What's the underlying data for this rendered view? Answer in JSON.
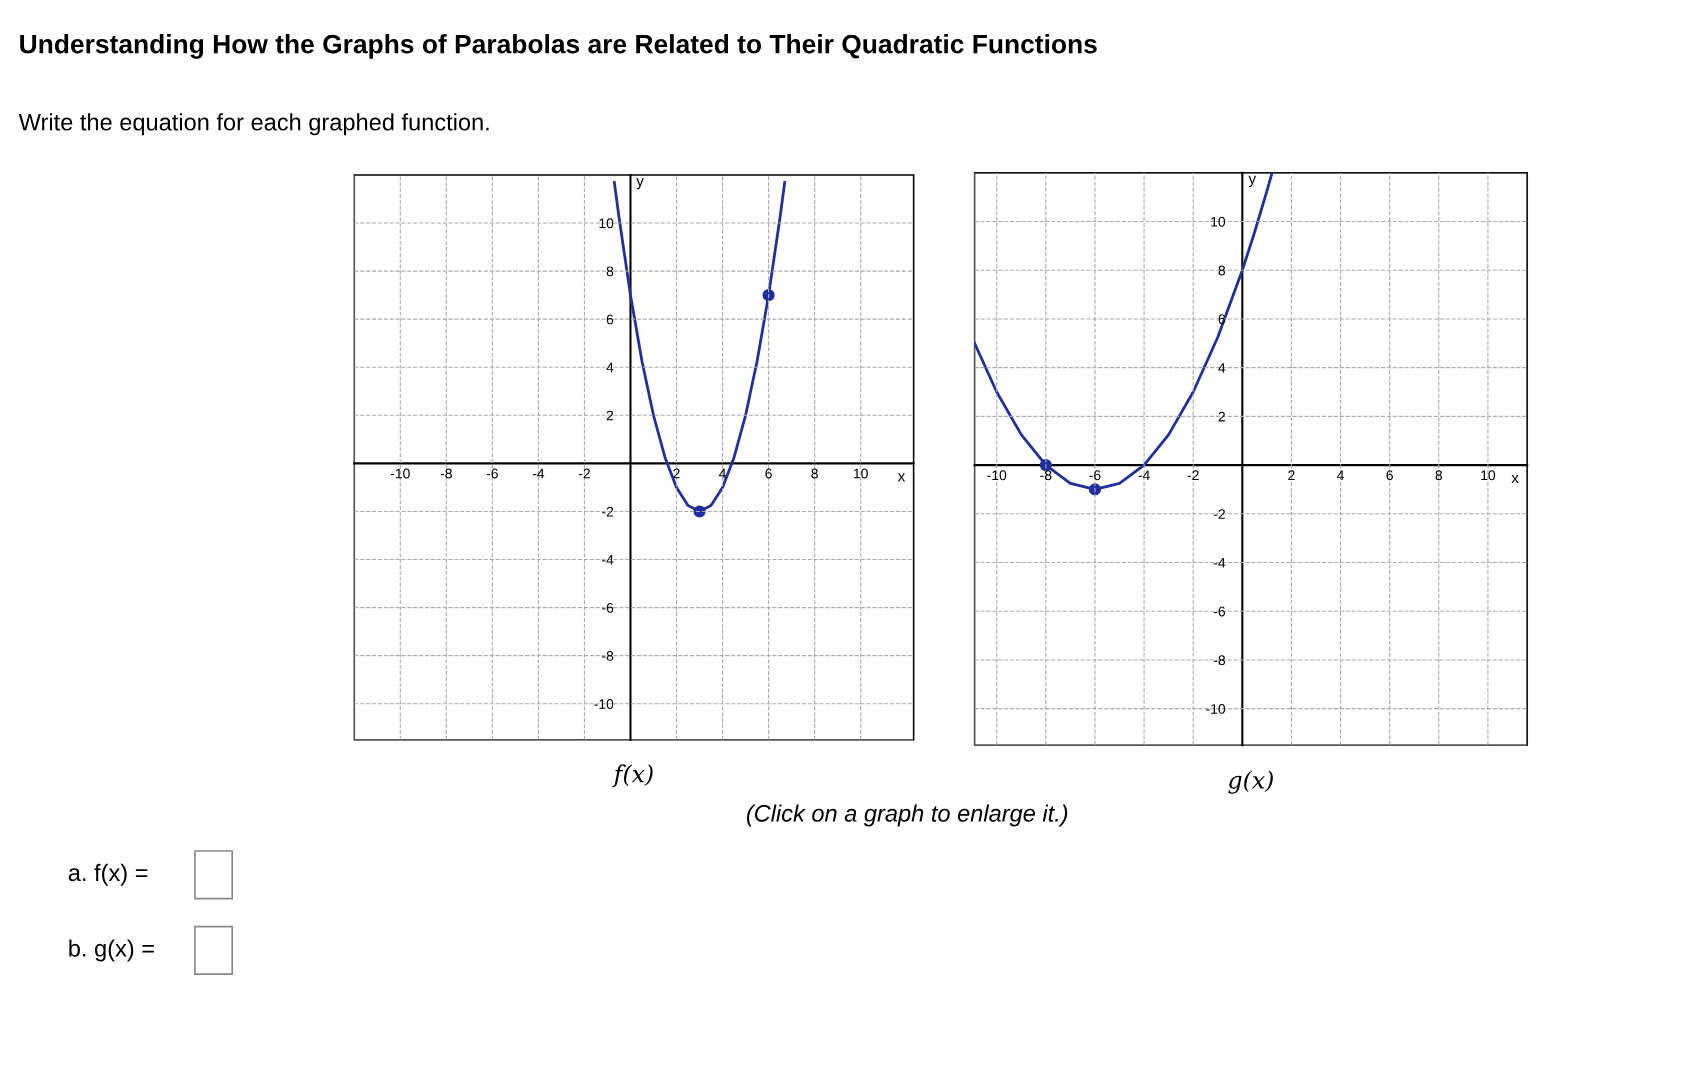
{
  "chart_data": [
    {
      "type": "line",
      "title": "f(x)",
      "xlabel": "x",
      "ylabel": "y",
      "xlim": [
        -12,
        12.3
      ],
      "ylim": [
        -11.5,
        12
      ],
      "xticks": [
        -10,
        -8,
        -6,
        -4,
        -2,
        2,
        4,
        6,
        8,
        10
      ],
      "yticks": [
        -10,
        -8,
        -6,
        -4,
        -2,
        2,
        4,
        6,
        8,
        10
      ],
      "grid": true,
      "annotations": [
        "Understanding How the Graphs of Parabolas are Related to Their Quadratic Functions",
        "Write the equation for each graphed function.",
        "(Click on a graph to enlarge it.)",
        "a. f(x) =",
        "b. g(x) ="
      ],
      "series": [
        {
          "color": "#1f2f9f",
          "x": [
            -0.7,
            -0.5,
            0,
            0.5,
            1,
            1.5,
            2,
            2.5,
            3,
            3.5,
            4,
            4.5,
            5,
            5.5,
            6,
            6.5,
            6.7
          ],
          "values": [
            11.69,
            10.25,
            7,
            4.25,
            2,
            0.25,
            -1,
            -1.75,
            -2,
            -1.75,
            -1,
            0.25,
            2,
            4.25,
            7,
            10.25,
            11.69
          ]
        },
        {
          "type": "scatter",
          "marker": "circle",
          "color": "#1f2f9f",
          "x": [
            3,
            6
          ],
          "values": [
            -2,
            7
          ]
        }
      ]
    },
    {
      "type": "line",
      "title": "g(x)",
      "xlabel": "x",
      "ylabel": "y",
      "xlim": [
        -10.9,
        11.6
      ],
      "ylim": [
        -11.5,
        12
      ],
      "xticks": [
        -10,
        -8,
        -6,
        -4,
        -2,
        2,
        4,
        6,
        8,
        10
      ],
      "yticks": [
        -10,
        -8,
        -6,
        -4,
        -2,
        2,
        4,
        6,
        8,
        10
      ],
      "grid": true,
      "series": [
        {
          "color": "#1f2f9f",
          "x": [
            -10.9,
            -10,
            -9,
            -8,
            -7,
            -6,
            -5,
            -4,
            -3,
            -2,
            -1,
            0,
            0.5,
            1,
            1.2
          ],
          "values": [
            5.0,
            3,
            1.25,
            0,
            -0.75,
            -1,
            -0.75,
            0,
            1.25,
            3,
            5.25,
            8,
            9.56,
            11.25,
            11.96
          ]
        },
        {
          "type": "scatter",
          "marker": "circle",
          "color": "#1f2f9f",
          "x": [
            -6,
            -8
          ],
          "values": [
            -1,
            0
          ]
        }
      ]
    }
  ]
}
